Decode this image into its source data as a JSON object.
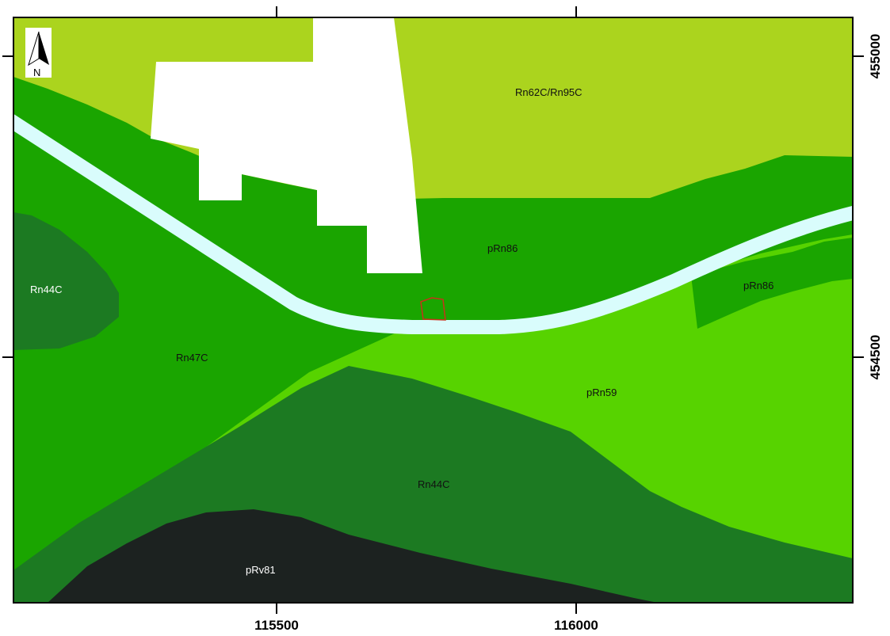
{
  "map": {
    "colors": {
      "Rn62C_Rn95C": "#abd41e",
      "pRn86": "#1aa500",
      "Rn47C": "#1aa500",
      "Rn44C": "#1c7a22",
      "pRn59": "#57d300",
      "pRv81": "#1c2220",
      "river": "#d9fcfc",
      "built_up": "#ffffff",
      "parcel_outline": "#c8321a",
      "frame": "#000000"
    },
    "zones": [
      {
        "id": "rn62c",
        "label": "Rn62C/Rn95C",
        "text_color": "#111111"
      },
      {
        "id": "prn86-center",
        "label": "pRn86",
        "text_color": "#111111"
      },
      {
        "id": "prn86-east",
        "label": "pRn86",
        "text_color": "#111111"
      },
      {
        "id": "rn44c-west",
        "label": "Rn44C",
        "text_color": "#ffffff"
      },
      {
        "id": "rn47c",
        "label": "Rn47C",
        "text_color": "#111111"
      },
      {
        "id": "prn59",
        "label": "pRn59",
        "text_color": "#111111"
      },
      {
        "id": "rn44c-south",
        "label": "Rn44C",
        "text_color": "#111111"
      },
      {
        "id": "prv81",
        "label": "pRv81",
        "text_color": "#ffffff"
      }
    ],
    "axes": {
      "x_ticks": [
        "115500",
        "116000"
      ],
      "y_ticks": [
        "455000",
        "454500"
      ]
    },
    "north_arrow": {
      "label": "N",
      "icon": "north-arrow-icon"
    }
  }
}
